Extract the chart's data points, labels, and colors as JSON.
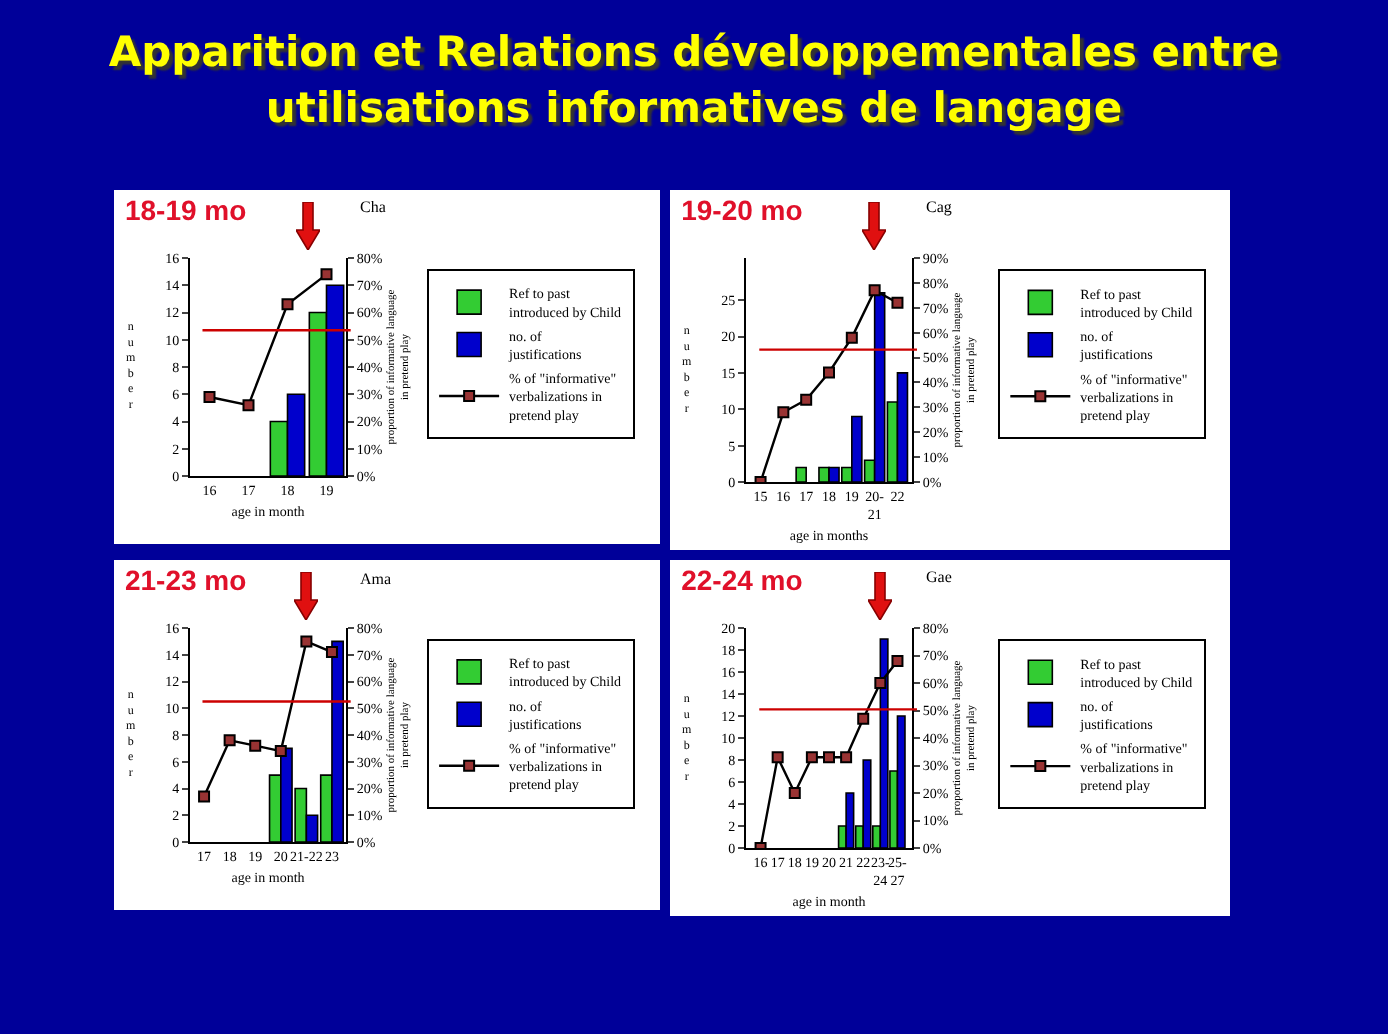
{
  "chart_data": [
    {
      "type": "other",
      "title": "Apparition et Relations développementales entre utilisations informatives de langage"
    },
    {
      "type": "bar",
      "title": "18-19 mo",
      "xlabel": "age in month",
      "ylabel": "number",
      "y2label": "proportion of informative language in pretend play",
      "annotations": [
        "Cha"
      ],
      "categories": [
        "16",
        "17",
        "18",
        "19"
      ],
      "series": [
        {
          "name": "Ref to past introduced by Child",
          "color": "#33cc33",
          "values": [
            null,
            null,
            4,
            12
          ]
        },
        {
          "name": "no. of justifications",
          "color": "#0000cc",
          "values": [
            null,
            null,
            6,
            14
          ]
        },
        {
          "name": "% of \"informative\" verbalizations in pretend play",
          "type": "line",
          "axis": "y2",
          "color": "#000000",
          "marker": "square",
          "line_style": "solid",
          "values": [
            29,
            26,
            63,
            74
          ]
        }
      ],
      "ylim": [
        0,
        16
      ],
      "yticks": [
        0,
        2,
        4,
        6,
        8,
        10,
        12,
        14,
        16
      ],
      "y2lim": [
        0,
        80
      ],
      "y2ticks": [
        {
          "value": 0,
          "label": "0%"
        },
        {
          "value": 10,
          "label": "10%"
        },
        {
          "value": 20,
          "label": "20%"
        },
        {
          "value": 30,
          "label": "30%"
        },
        {
          "value": 40,
          "label": "40%"
        },
        {
          "value": 50,
          "label": "50%"
        },
        {
          "value": 60,
          "label": "60%"
        },
        {
          "value": 70,
          "label": "70%"
        },
        {
          "value": 80,
          "label": "80%"
        }
      ],
      "ref_lines": [
        {
          "axis": "y",
          "value": 10.7,
          "color": "#cc0000"
        }
      ],
      "legend": "right",
      "grid": false
    },
    {
      "type": "bar",
      "title": "19-20 mo",
      "xlabel": "age in months",
      "ylabel": "number",
      "y2label": "proportion of informative language in pretend play",
      "annotations": [
        "Cag"
      ],
      "categories": [
        "15",
        "16",
        "17",
        "18",
        "19",
        "20-21",
        "22"
      ],
      "series": [
        {
          "name": "Ref to past introduced by Child",
          "color": "#33cc33",
          "values": [
            null,
            null,
            2,
            2,
            2,
            3,
            11
          ]
        },
        {
          "name": "no. of justifications",
          "color": "#0000cc",
          "values": [
            null,
            null,
            null,
            2,
            9,
            26,
            15
          ]
        },
        {
          "name": "% of \"informative\" verbalizations in pretend play",
          "type": "line",
          "axis": "y2",
          "color": "#000000",
          "marker": "square",
          "line_style": "solid",
          "values": [
            0,
            28,
            33,
            44,
            58,
            77,
            72
          ]
        }
      ],
      "ylim": [
        0,
        30.8
      ],
      "yticks": [
        0,
        5,
        10,
        15,
        20,
        25
      ],
      "y2lim": [
        0,
        90
      ],
      "y2ticks": [
        {
          "value": 0,
          "label": "0%"
        },
        {
          "value": 10,
          "label": "10%"
        },
        {
          "value": 20,
          "label": "20%"
        },
        {
          "value": 30,
          "label": "30%"
        },
        {
          "value": 40,
          "label": "40%"
        },
        {
          "value": 50,
          "label": "50%"
        },
        {
          "value": 60,
          "label": "60%"
        },
        {
          "value": 70,
          "label": "70%"
        },
        {
          "value": 80,
          "label": "80%"
        },
        {
          "value": 90,
          "label": "90%"
        }
      ],
      "ref_lines": [
        {
          "axis": "y",
          "value": 18.2,
          "color": "#cc0000"
        }
      ],
      "legend": "right",
      "grid": false
    },
    {
      "type": "bar",
      "title": "21-23 mo",
      "xlabel": "age in month",
      "ylabel": "number",
      "y2label": "proportion of informative language in pretend play",
      "annotations": [
        "Ama"
      ],
      "categories": [
        "17",
        "18",
        "19",
        "20",
        "21-22",
        "23"
      ],
      "series": [
        {
          "name": "Ref to past introduced by Child",
          "color": "#33cc33",
          "values": [
            null,
            null,
            null,
            5,
            4,
            5
          ]
        },
        {
          "name": "no. of justifications",
          "color": "#0000cc",
          "values": [
            null,
            null,
            null,
            7,
            2,
            15
          ]
        },
        {
          "name": "% of \"informative\" verbalizations in pretend play",
          "type": "line",
          "axis": "y2",
          "color": "#000000",
          "marker": "square",
          "line_style": "solid",
          "values": [
            17,
            38,
            36,
            34,
            75,
            71
          ]
        }
      ],
      "ylim": [
        0,
        16
      ],
      "yticks": [
        0,
        2,
        4,
        6,
        8,
        10,
        12,
        14,
        16
      ],
      "y2lim": [
        0,
        80
      ],
      "y2ticks": [
        {
          "value": 0,
          "label": "0%"
        },
        {
          "value": 10,
          "label": "10%"
        },
        {
          "value": 20,
          "label": "20%"
        },
        {
          "value": 30,
          "label": "30%"
        },
        {
          "value": 40,
          "label": "40%"
        },
        {
          "value": 50,
          "label": "50%"
        },
        {
          "value": 60,
          "label": "60%"
        },
        {
          "value": 70,
          "label": "70%"
        },
        {
          "value": 80,
          "label": "80%"
        }
      ],
      "ref_lines": [
        {
          "axis": "y",
          "value": 10.5,
          "color": "#cc0000"
        }
      ],
      "legend": "right",
      "grid": false
    },
    {
      "type": "bar",
      "title": "22-24 mo",
      "xlabel": "age in month",
      "ylabel": "number",
      "y2label": "proportion of informative language in pretend play",
      "annotations": [
        "Gae"
      ],
      "categories": [
        "16",
        "17",
        "18",
        "19",
        "20",
        "21",
        "22",
        "23-24",
        "25-27"
      ],
      "series": [
        {
          "name": "Ref to past introduced by Child",
          "color": "#33cc33",
          "values": [
            null,
            null,
            null,
            null,
            null,
            2,
            2,
            2,
            7
          ]
        },
        {
          "name": "no. of justifications",
          "color": "#0000cc",
          "values": [
            null,
            null,
            null,
            null,
            null,
            5,
            8,
            19,
            12
          ]
        },
        {
          "name": "% of \"informative\" verbalizations in pretend play",
          "type": "line",
          "axis": "y2",
          "color": "#000000",
          "marker": "square",
          "line_style": "solid",
          "values": [
            0,
            33,
            20,
            33,
            33,
            33,
            47,
            60,
            68
          ]
        }
      ],
      "ylim": [
        0,
        20
      ],
      "yticks": [
        0,
        2,
        4,
        6,
        8,
        10,
        12,
        14,
        16,
        18,
        20
      ],
      "y2lim": [
        0,
        80
      ],
      "y2ticks": [
        {
          "value": 0,
          "label": "0%"
        },
        {
          "value": 10,
          "label": "10%"
        },
        {
          "value": 20,
          "label": "20%"
        },
        {
          "value": 30,
          "label": "30%"
        },
        {
          "value": 40,
          "label": "40%"
        },
        {
          "value": 50,
          "label": "50%"
        },
        {
          "value": 60,
          "label": "60%"
        },
        {
          "value": 70,
          "label": "70%"
        },
        {
          "value": 80,
          "label": "80%"
        }
      ],
      "ref_lines": [
        {
          "axis": "y",
          "value": 12.6,
          "color": "#cc0000"
        }
      ],
      "legend": "right",
      "grid": false
    }
  ]
}
